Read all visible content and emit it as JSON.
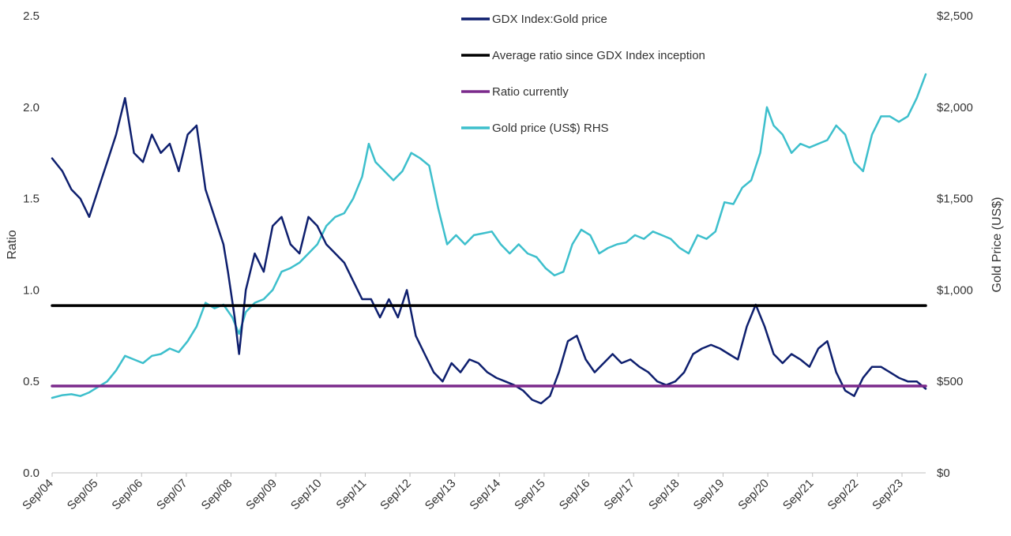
{
  "chart_data": {
    "type": "line",
    "title": "",
    "xlabel": "",
    "ylabel": "Ratio",
    "y2label": "Gold Price (US$)",
    "ylim": [
      0,
      2.5
    ],
    "y2lim": [
      0,
      2500
    ],
    "grid": false,
    "legend_position": "top-center",
    "x_ticks": [
      "Sep/04",
      "Sep/05",
      "Sep/06",
      "Sep/07",
      "Sep/08",
      "Sep/09",
      "Sep/10",
      "Sep/11",
      "Sep/12",
      "Sep/13",
      "Sep/14",
      "Sep/15",
      "Sep/16",
      "Sep/17",
      "Sep/18",
      "Sep/19",
      "Sep/20",
      "Sep/21",
      "Sep/22",
      "Sep/23"
    ],
    "y_ticks": [
      "0.0",
      "0.5",
      "1.0",
      "1.5",
      "2.0",
      "2.5"
    ],
    "y2_ticks": [
      "$0",
      "$500",
      "$1,000",
      "$1,500",
      "$2,000",
      "$2,500"
    ],
    "x_range": [
      2004.67,
      2024.2
    ],
    "series": [
      {
        "name": "GDX Index:Gold price",
        "axis": "left",
        "color": "#0e1f6e",
        "x": [
          2004.67,
          2004.9,
          2005.1,
          2005.3,
          2005.5,
          2005.7,
          2005.9,
          2006.1,
          2006.3,
          2006.5,
          2006.7,
          2006.9,
          2007.1,
          2007.3,
          2007.5,
          2007.7,
          2007.9,
          2008.1,
          2008.3,
          2008.5,
          2008.6,
          2008.75,
          2008.85,
          2009.0,
          2009.2,
          2009.4,
          2009.6,
          2009.8,
          2010.0,
          2010.2,
          2010.4,
          2010.6,
          2010.8,
          2011.0,
          2011.2,
          2011.4,
          2011.6,
          2011.8,
          2012.0,
          2012.2,
          2012.4,
          2012.6,
          2012.8,
          2013.0,
          2013.2,
          2013.4,
          2013.6,
          2013.8,
          2014.0,
          2014.2,
          2014.4,
          2014.6,
          2014.8,
          2015.0,
          2015.2,
          2015.4,
          2015.6,
          2015.8,
          2016.0,
          2016.2,
          2016.4,
          2016.6,
          2016.8,
          2017.0,
          2017.2,
          2017.4,
          2017.6,
          2017.8,
          2018.0,
          2018.2,
          2018.4,
          2018.6,
          2018.8,
          2019.0,
          2019.2,
          2019.4,
          2019.6,
          2019.8,
          2020.0,
          2020.2,
          2020.4,
          2020.6,
          2020.8,
          2021.0,
          2021.2,
          2021.4,
          2021.6,
          2021.8,
          2022.0,
          2022.2,
          2022.4,
          2022.6,
          2022.8,
          2023.0,
          2023.2,
          2023.4,
          2023.6,
          2023.8,
          2024.0,
          2024.2
        ],
        "values": [
          1.72,
          1.65,
          1.55,
          1.5,
          1.4,
          1.55,
          1.7,
          1.85,
          2.05,
          1.75,
          1.7,
          1.85,
          1.75,
          1.8,
          1.65,
          1.85,
          1.9,
          1.55,
          1.4,
          1.25,
          1.1,
          0.85,
          0.65,
          1.0,
          1.2,
          1.1,
          1.35,
          1.4,
          1.25,
          1.2,
          1.4,
          1.35,
          1.25,
          1.2,
          1.15,
          1.05,
          0.95,
          0.95,
          0.85,
          0.95,
          0.85,
          1.0,
          0.75,
          0.65,
          0.55,
          0.5,
          0.6,
          0.55,
          0.62,
          0.6,
          0.55,
          0.52,
          0.5,
          0.48,
          0.45,
          0.4,
          0.38,
          0.42,
          0.55,
          0.72,
          0.75,
          0.62,
          0.55,
          0.6,
          0.65,
          0.6,
          0.62,
          0.58,
          0.55,
          0.5,
          0.48,
          0.5,
          0.55,
          0.65,
          0.68,
          0.7,
          0.68,
          0.65,
          0.62,
          0.8,
          0.92,
          0.8,
          0.65,
          0.6,
          0.65,
          0.62,
          0.58,
          0.68,
          0.72,
          0.55,
          0.45,
          0.42,
          0.52,
          0.58,
          0.58,
          0.55,
          0.52,
          0.5,
          0.5,
          0.46
        ]
      },
      {
        "name": "Average ratio since GDX Index inception",
        "axis": "left",
        "color": "#000000",
        "x": [
          2004.67,
          2024.2
        ],
        "values": [
          0.915,
          0.915
        ]
      },
      {
        "name": "Ratio currently",
        "axis": "left",
        "color": "#7b2a8c",
        "x": [
          2004.67,
          2024.2
        ],
        "values": [
          0.475,
          0.475
        ]
      },
      {
        "name": "Gold price (US$) RHS",
        "axis": "right",
        "color": "#3dbfcc",
        "x": [
          2004.67,
          2004.9,
          2005.1,
          2005.3,
          2005.5,
          2005.7,
          2005.9,
          2006.1,
          2006.3,
          2006.5,
          2006.7,
          2006.9,
          2007.1,
          2007.3,
          2007.5,
          2007.7,
          2007.9,
          2008.1,
          2008.3,
          2008.5,
          2008.7,
          2008.85,
          2009.0,
          2009.2,
          2009.4,
          2009.6,
          2009.8,
          2010.0,
          2010.2,
          2010.4,
          2010.6,
          2010.8,
          2011.0,
          2011.2,
          2011.4,
          2011.6,
          2011.75,
          2011.9,
          2012.1,
          2012.3,
          2012.5,
          2012.7,
          2012.9,
          2013.1,
          2013.3,
          2013.5,
          2013.7,
          2013.9,
          2014.1,
          2014.3,
          2014.5,
          2014.7,
          2014.9,
          2015.1,
          2015.3,
          2015.5,
          2015.7,
          2015.9,
          2016.1,
          2016.3,
          2016.5,
          2016.7,
          2016.9,
          2017.1,
          2017.3,
          2017.5,
          2017.7,
          2017.9,
          2018.1,
          2018.3,
          2018.5,
          2018.7,
          2018.9,
          2019.1,
          2019.3,
          2019.5,
          2019.7,
          2019.9,
          2020.1,
          2020.3,
          2020.5,
          2020.65,
          2020.8,
          2021.0,
          2021.2,
          2021.4,
          2021.6,
          2021.8,
          2022.0,
          2022.2,
          2022.4,
          2022.6,
          2022.8,
          2023.0,
          2023.2,
          2023.4,
          2023.6,
          2023.8,
          2024.0,
          2024.2
        ],
        "values": [
          410,
          425,
          430,
          420,
          440,
          470,
          500,
          560,
          640,
          620,
          600,
          640,
          650,
          680,
          660,
          720,
          800,
          930,
          900,
          920,
          850,
          760,
          880,
          930,
          950,
          1000,
          1100,
          1120,
          1150,
          1200,
          1250,
          1350,
          1400,
          1420,
          1500,
          1620,
          1800,
          1700,
          1650,
          1600,
          1650,
          1750,
          1720,
          1680,
          1450,
          1250,
          1300,
          1250,
          1300,
          1310,
          1320,
          1250,
          1200,
          1250,
          1200,
          1180,
          1120,
          1080,
          1100,
          1250,
          1330,
          1300,
          1200,
          1230,
          1250,
          1260,
          1300,
          1280,
          1320,
          1300,
          1280,
          1230,
          1200,
          1300,
          1280,
          1320,
          1480,
          1470,
          1560,
          1600,
          1750,
          2000,
          1900,
          1850,
          1750,
          1800,
          1780,
          1800,
          1820,
          1900,
          1850,
          1700,
          1650,
          1850,
          1950,
          1950,
          1920,
          1950,
          2050,
          2180
        ]
      }
    ]
  }
}
